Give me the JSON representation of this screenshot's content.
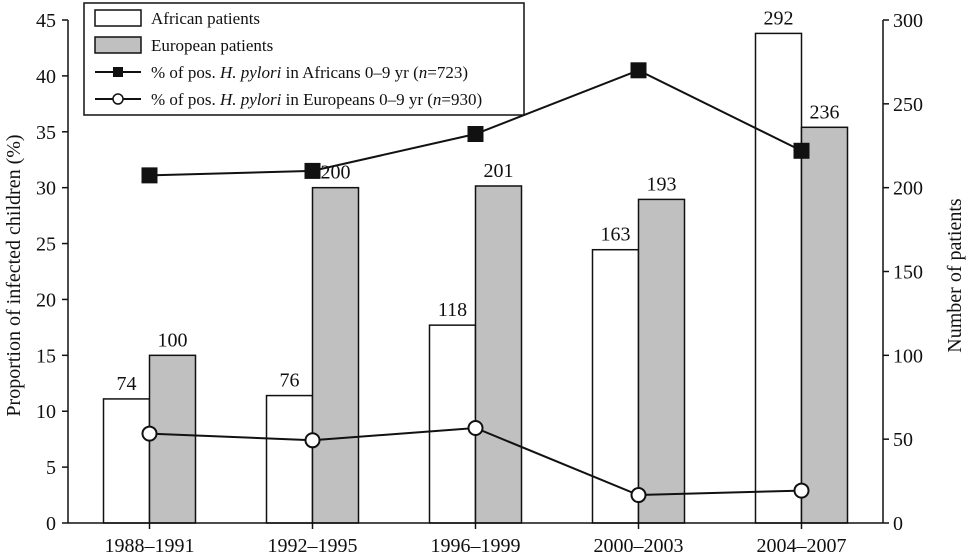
{
  "chart_data": {
    "type": "bar",
    "categories": [
      "1988–1991",
      "1992–1995",
      "1996–1999",
      "2000–2003",
      "2004–2007"
    ],
    "bar_series": [
      {
        "name": "African patients",
        "values": [
          74,
          76,
          118,
          163,
          292
        ],
        "fill": "#ffffff",
        "stroke": "#111111"
      },
      {
        "name": "European patients",
        "values": [
          100,
          200,
          201,
          193,
          236
        ],
        "fill": "#c0c0c0",
        "stroke": "#111111"
      }
    ],
    "line_series": [
      {
        "name_prefix": "% of pos. ",
        "name_italic": "H. pylori",
        "name_mid": " in Africans 0–9 yr (",
        "name_n": "n",
        "name_suffix": "=723)",
        "values": [
          31.1,
          31.5,
          34.8,
          40.5,
          33.3
        ],
        "marker": "square"
      },
      {
        "name_prefix": "% of pos. ",
        "name_italic": "H. pylori",
        "name_mid": " in Europeans 0–9 yr (",
        "name_n": "n",
        "name_suffix": "=930)",
        "values": [
          8.0,
          7.4,
          8.5,
          2.5,
          2.9
        ],
        "marker": "circle"
      }
    ],
    "y_left": {
      "label": "Proportion of infected children (%)",
      "min": 0,
      "max": 45,
      "ticks": [
        0,
        5,
        10,
        15,
        20,
        25,
        30,
        35,
        40,
        45
      ]
    },
    "y_right": {
      "label": "Number of patients",
      "min": 0,
      "max": 300,
      "ticks": [
        0,
        50,
        100,
        150,
        200,
        250,
        300
      ]
    },
    "grid": false,
    "legend_position": "top-left"
  }
}
